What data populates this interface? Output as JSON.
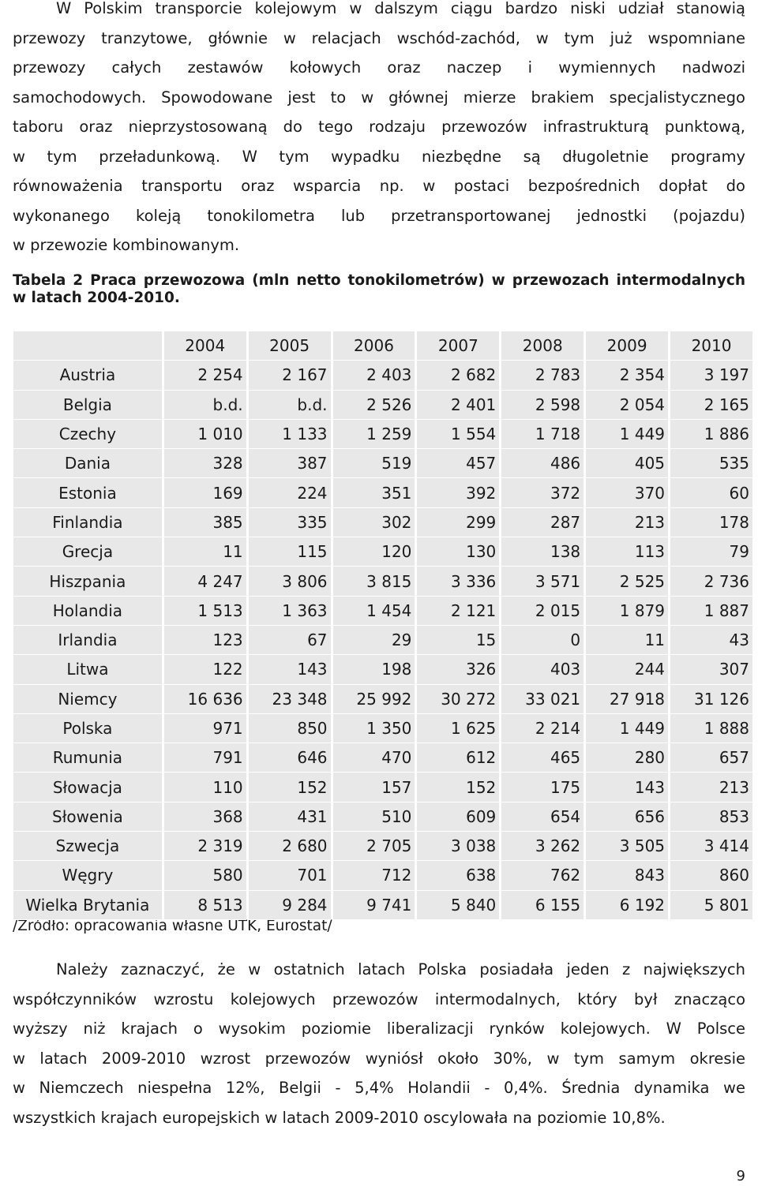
{
  "paragraph1": {
    "lines": [
      "W Polskim transporcie kolejowym w dalszym ciągu bardzo niski udział stanowią",
      "przewozy tranzytowe, głównie w relacjach wschód-zachód, w tym już wspomniane",
      "przewozy całych zestawów kołowych oraz naczep i wymiennych nadwozi",
      "samochodowych. Spowodowane jest to w głównej mierze brakiem specjalistycznego",
      "taboru oraz nieprzystosowaną do tego rodzaju przewozów infrastrukturą punktową,",
      "w tym przeładunkową. W tym wypadku niezbędne są długoletnie programy",
      "równoważenia transportu oraz wsparcia np. w postaci bezpośrednich dopłat do",
      "wykonanego koleją tonokilometra lub przetransportowanej jednostki (pojazdu)",
      "w przewozie kombinowanym."
    ]
  },
  "caption": {
    "line1": "Tabela 2 Praca przewozowa (mln netto tonokilometrów) w przewozach intermodalnych",
    "line2": "w latach 2004-2010."
  },
  "table": {
    "years": [
      "2004",
      "2005",
      "2006",
      "2007",
      "2008",
      "2009",
      "2010"
    ],
    "rows": [
      {
        "country": "Austria",
        "values": [
          "2 254",
          "2 167",
          "2 403",
          "2 682",
          "2 783",
          "2 354",
          "3 197"
        ]
      },
      {
        "country": "Belgia",
        "values": [
          "b.d.",
          "b.d.",
          "2 526",
          "2 401",
          "2 598",
          "2 054",
          "2 165"
        ]
      },
      {
        "country": "Czechy",
        "values": [
          "1 010",
          "1 133",
          "1 259",
          "1 554",
          "1 718",
          "1 449",
          "1 886"
        ]
      },
      {
        "country": "Dania",
        "values": [
          "328",
          "387",
          "519",
          "457",
          "486",
          "405",
          "535"
        ]
      },
      {
        "country": "Estonia",
        "values": [
          "169",
          "224",
          "351",
          "392",
          "372",
          "370",
          "60"
        ]
      },
      {
        "country": "Finlandia",
        "values": [
          "385",
          "335",
          "302",
          "299",
          "287",
          "213",
          "178"
        ]
      },
      {
        "country": "Grecja",
        "values": [
          "11",
          "115",
          "120",
          "130",
          "138",
          "113",
          "79"
        ]
      },
      {
        "country": "Hiszpania",
        "values": [
          "4 247",
          "3 806",
          "3 815",
          "3 336",
          "3 571",
          "2 525",
          "2 736"
        ]
      },
      {
        "country": "Holandia",
        "values": [
          "1 513",
          "1 363",
          "1 454",
          "2 121",
          "2 015",
          "1 879",
          "1 887"
        ]
      },
      {
        "country": "Irlandia",
        "values": [
          "123",
          "67",
          "29",
          "15",
          "0",
          "11",
          "43"
        ]
      },
      {
        "country": "Litwa",
        "values": [
          "122",
          "143",
          "198",
          "326",
          "403",
          "244",
          "307"
        ]
      },
      {
        "country": "Niemcy",
        "values": [
          "16 636",
          "23 348",
          "25 992",
          "30 272",
          "33 021",
          "27 918",
          "31 126"
        ]
      },
      {
        "country": "Polska",
        "values": [
          "971",
          "850",
          "1 350",
          "1 625",
          "2 214",
          "1 449",
          "1 888"
        ]
      },
      {
        "country": "Rumunia",
        "values": [
          "791",
          "646",
          "470",
          "612",
          "465",
          "280",
          "657"
        ]
      },
      {
        "country": "Słowacja",
        "values": [
          "110",
          "152",
          "157",
          "152",
          "175",
          "143",
          "213"
        ]
      },
      {
        "country": "Słowenia",
        "values": [
          "368",
          "431",
          "510",
          "609",
          "654",
          "656",
          "853"
        ]
      },
      {
        "country": "Szwecja",
        "values": [
          "2 319",
          "2 680",
          "2 705",
          "3 038",
          "3 262",
          "3 505",
          "3 414"
        ]
      },
      {
        "country": "Węgry",
        "values": [
          "580",
          "701",
          "712",
          "638",
          "762",
          "843",
          "860"
        ]
      },
      {
        "country": "Wielka Brytania",
        "values": [
          "8 513",
          "9 284",
          "9 741",
          "5 840",
          "6 155",
          "6 192",
          "5 801"
        ]
      }
    ]
  },
  "source": "/Źródło: opracowania własne UTK, Eurostat/",
  "paragraph2": {
    "lines": [
      "Należy zaznaczyć, że w ostatnich latach Polska posiadała jeden z największych",
      "współczynników wzrostu kolejowych przewozów intermodalnych, który był znacząco",
      "wyższy niż krajach o wysokim poziomie liberalizacji rynków kolejowych. W Polsce",
      "w latach 2009-2010 wzrost przewozów wyniósł około 30%, w tym samym okresie",
      "w Niemczech niespełna 12%, Belgii - 5,4% Holandii - 0,4%. Średnia dynamika we",
      "wszystkich krajach europejskich w latach 2009-2010 oscylowała na poziomie 10,8%."
    ]
  },
  "page_number": "9"
}
